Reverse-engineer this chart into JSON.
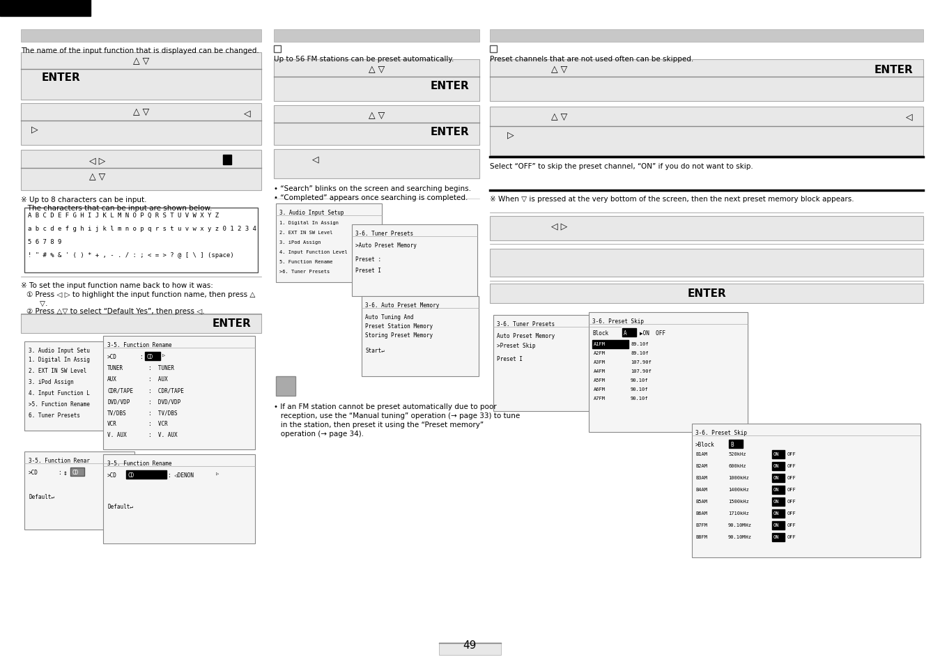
{
  "bg_color": "#ffffff",
  "page_number": "49",
  "screen_gray": "#d8d8d8",
  "screen_dark": "#888888",
  "screen_black": "#000000",
  "box_bg": "#e8e8e8",
  "box_border": "#aaaaaa",
  "header_gray": "#c8c8c8",
  "up_down": "△ ▽",
  "left_arrow": "◁",
  "right_arrow": "▷",
  "left_right": "◁ ▷",
  "enter": "ENTER",
  "col1_intro": "The name of the input function that is displayed can be changed.",
  "col2_intro": "Up to 56 FM stations can be preset automatically.",
  "col3_intro": "Preset channels that are not used often can be skipped.",
  "col3_select": "Select “OFF” to skip the preset channel, “ON” if you do not want to skip.",
  "col3_note": "※ When ▽ is pressed at the very bottom of the screen, then the next preset memory block appears.",
  "note1": "※ Up to 8 characters can be input.",
  "note1b": "   The characters that can be input are shown below.",
  "char_line1": "A B C D E F G H I J K L M N O P Q R S T U V W X Y Z",
  "char_line2": "a b c d e f g h i j k l m n o p q r s t u v w x y z 0 1 2 3 4",
  "char_line3": "5 6 7 8 9",
  "char_line4": "! \" # % & ' ( ) * + , - . / : ; < = > ? @ [ \\ ] (space)",
  "note2": "※ To set the input function name back to how it was:",
  "note2a": "① Press ◁ ▷ to highlight the input function name, then press △",
  "note2ab": "    ▽.",
  "note2b": "② Press △▽ to select “Default Yes”, then press ◁.",
  "bullet_search": "• “Search” blinks on the screen and searching begins.",
  "bullet_complete": "• “Completed” appears once searching is completed.",
  "note_fm1": "• If an FM station cannot be preset automatically due to poor",
  "note_fm2": "   reception, use the “Manual tuning” operation (→ page 33) to tune",
  "note_fm3": "   in the station, then preset it using the “Preset memory”",
  "note_fm4": "   operation (→ page 34)."
}
